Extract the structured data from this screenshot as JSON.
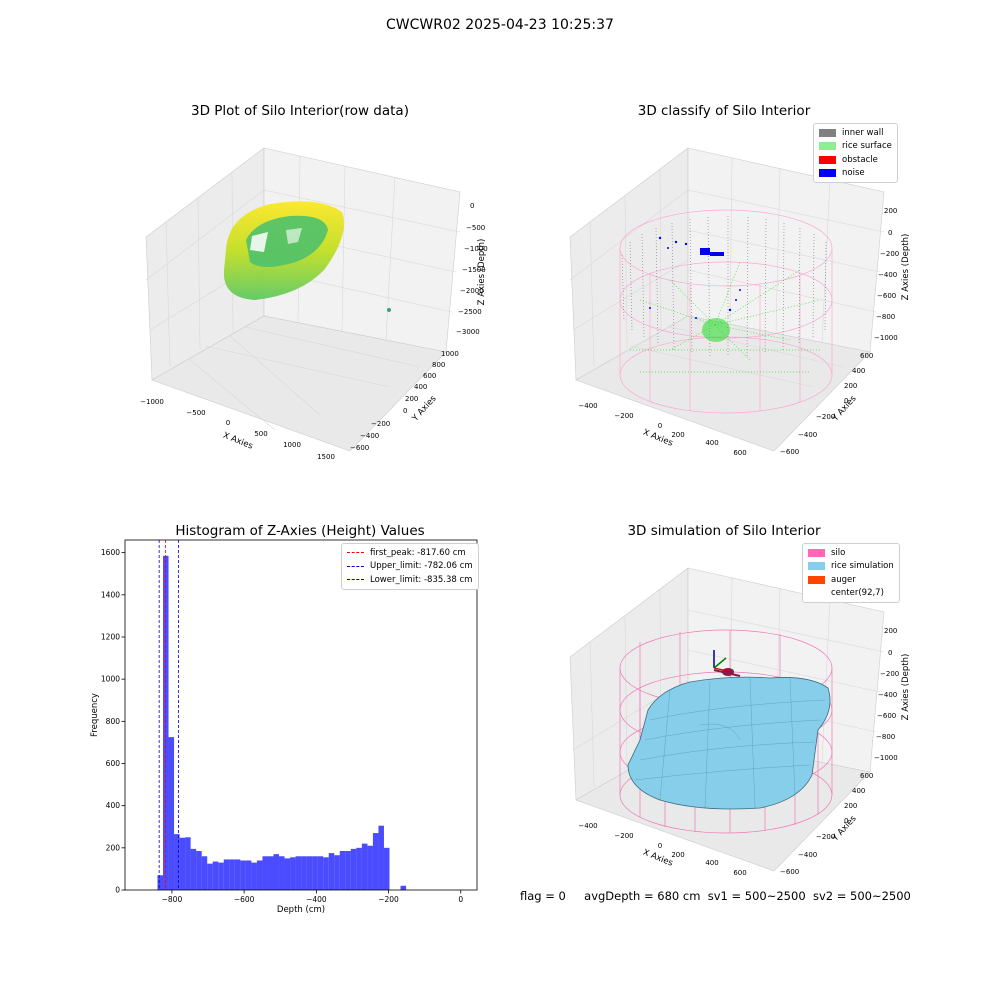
{
  "suptitle": "CWCWR02 2025-04-23 10:25:37",
  "chart_data": [
    {
      "type": "scatter",
      "title": "3D Plot of Silo Interior(row data)",
      "xlabel": "X Axies",
      "ylabel": "Y Axies",
      "zlabel": "Z Axies (Depth)",
      "x_ticks": [
        "−1000",
        "−500",
        "0",
        "500",
        "1000",
        "1500"
      ],
      "y_ticks": [
        "−600",
        "−400",
        "−200",
        "0",
        "200",
        "400",
        "600",
        "800",
        "1000"
      ],
      "z_ticks": [
        "0",
        "−500",
        "−1000",
        "−1500",
        "−2000",
        "−2500",
        "−3000"
      ],
      "zlim": [
        -3200,
        100
      ],
      "colormap": "viridis"
    },
    {
      "type": "scatter",
      "title": "3D classify of Silo Interior",
      "xlabel": "X Axies",
      "ylabel": "Y Axies",
      "zlabel": "Z Axies (Depth)",
      "x_ticks": [
        "−400",
        "−200",
        "0",
        "200",
        "400",
        "600"
      ],
      "y_ticks": [
        "−600",
        "−400",
        "−200",
        "0",
        "200",
        "400",
        "600"
      ],
      "z_ticks": [
        "200",
        "0",
        "−200",
        "−400",
        "−600",
        "−800",
        "−1000"
      ],
      "legend": [
        {
          "label": "inner wall",
          "color": "#808080"
        },
        {
          "label": "rice surface",
          "color": "#90ee90"
        },
        {
          "label": "obstacle",
          "color": "#ff0000"
        },
        {
          "label": "noise",
          "color": "#0000ff"
        }
      ],
      "legend_position": "top-right"
    },
    {
      "type": "bar",
      "title": "Histogram of Z-Axies (Height) Values",
      "xlabel": "Depth (cm)",
      "ylabel": "Frequency",
      "xlim": [
        -930,
        45
      ],
      "ylim": [
        0,
        1660
      ],
      "x_ticks": [
        -800,
        -600,
        -400,
        -200,
        0
      ],
      "y_ticks": [
        0,
        200,
        400,
        600,
        800,
        1000,
        1200,
        1400,
        1600
      ],
      "bin_start": -840,
      "bin_width": 15.3,
      "values": [
        70,
        1585,
        725,
        265,
        248,
        250,
        195,
        185,
        160,
        125,
        135,
        130,
        145,
        145,
        145,
        140,
        140,
        130,
        140,
        160,
        160,
        170,
        160,
        150,
        155,
        160,
        160,
        160,
        160,
        160,
        155,
        175,
        165,
        185,
        185,
        195,
        200,
        220,
        210,
        270,
        305,
        200,
        0,
        0,
        20
      ],
      "bar_color": "#0000ff",
      "bar_alpha": 0.7,
      "vlines": [
        {
          "x": -817.6,
          "color": "#ff0000",
          "label": "first_peak: -817.60 cm"
        },
        {
          "x": -782.06,
          "color": "#0000cc",
          "label": "Upper_limit: -782.06 cm"
        },
        {
          "x": -835.38,
          "color": "#0000cc",
          "label": "Lower_limit: -835.38 cm"
        }
      ],
      "legend_position": "top-right"
    },
    {
      "type": "area",
      "title": "3D simulation of Silo Interior",
      "xlabel": "X Axies",
      "ylabel": "Y Axies",
      "zlabel": "Z Axies (Depth)",
      "x_ticks": [
        "−400",
        "−200",
        "0",
        "200",
        "400",
        "600"
      ],
      "y_ticks": [
        "−600",
        "−400",
        "−200",
        "0",
        "200",
        "400",
        "600"
      ],
      "z_ticks": [
        "200",
        "0",
        "−200",
        "−400",
        "−600",
        "−800",
        "−1000"
      ],
      "legend": [
        {
          "label": "silo",
          "color": "#ff69b4"
        },
        {
          "label": "rice simulation",
          "color": "#87ceeb"
        },
        {
          "label": "auger",
          "color": "#ff4500"
        },
        {
          "label": "center(92,7)",
          "color": ""
        }
      ],
      "legend_position": "top-right"
    }
  ],
  "status": {
    "flag": "flag = 0",
    "avg_depth": "avgDepth = 680 cm",
    "sv1": "sv1 = 500~2500",
    "sv2": "sv2 = 500~2500"
  }
}
